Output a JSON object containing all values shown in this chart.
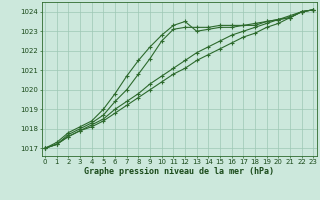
{
  "title": "Graphe pression niveau de la mer (hPa)",
  "xlabel_hours": [
    0,
    1,
    2,
    3,
    4,
    5,
    6,
    7,
    8,
    9,
    10,
    11,
    12,
    13,
    14,
    15,
    16,
    17,
    18,
    19,
    20,
    21,
    22,
    23
  ],
  "ylim": [
    1016.6,
    1024.5
  ],
  "xlim": [
    -0.3,
    23.3
  ],
  "yticks": [
    1017,
    1018,
    1019,
    1020,
    1021,
    1022,
    1023,
    1024
  ],
  "line1": [
    1017.0,
    1017.2,
    1017.7,
    1018.0,
    1018.3,
    1018.7,
    1019.4,
    1020.0,
    1020.8,
    1021.6,
    1022.5,
    1023.1,
    1023.2,
    1023.2,
    1023.2,
    1023.3,
    1023.3,
    1023.3,
    1023.4,
    1023.5,
    1023.6,
    1023.7,
    1024.0,
    1024.1
  ],
  "line2": [
    1017.0,
    1017.3,
    1017.8,
    1018.1,
    1018.4,
    1019.0,
    1019.8,
    1020.7,
    1021.5,
    1022.2,
    1022.8,
    1023.3,
    1023.5,
    1023.0,
    1023.1,
    1023.2,
    1023.2,
    1023.3,
    1023.3,
    1023.5,
    1023.6,
    1023.8,
    1024.0,
    1024.1
  ],
  "line3": [
    1017.0,
    1017.2,
    1017.6,
    1017.9,
    1018.2,
    1018.5,
    1019.0,
    1019.4,
    1019.8,
    1020.3,
    1020.7,
    1021.1,
    1021.5,
    1021.9,
    1022.2,
    1022.5,
    1022.8,
    1023.0,
    1023.2,
    1023.4,
    1023.6,
    1023.7,
    1024.0,
    1024.1
  ],
  "line4": [
    1017.0,
    1017.2,
    1017.6,
    1017.9,
    1018.1,
    1018.4,
    1018.8,
    1019.2,
    1019.6,
    1020.0,
    1020.4,
    1020.8,
    1021.1,
    1021.5,
    1021.8,
    1022.1,
    1022.4,
    1022.7,
    1022.9,
    1023.2,
    1023.4,
    1023.7,
    1024.0,
    1024.1
  ],
  "line_color": "#2d6a2d",
  "bg_color": "#cce8dc",
  "grid_color": "#9ec8b4",
  "text_color": "#1a4a1a",
  "marker": "+",
  "marker_size": 3.5,
  "linewidth": 0.8,
  "title_fontsize": 6.0,
  "tick_fontsize": 5.0
}
